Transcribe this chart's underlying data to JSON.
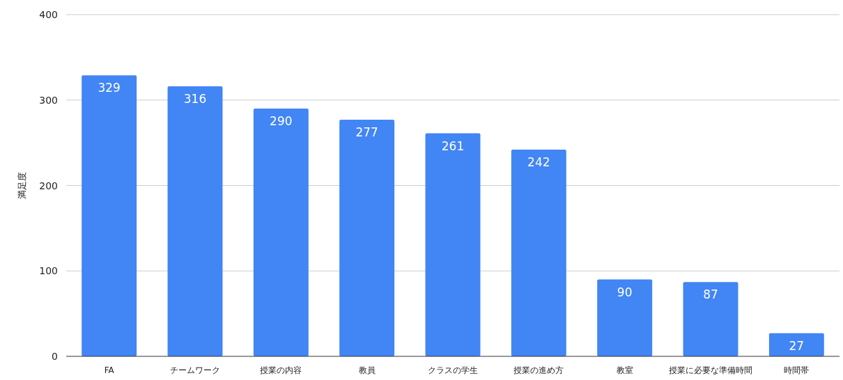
{
  "chart_data": {
    "type": "bar",
    "ylabel": "満足度",
    "categories": [
      "FA",
      "チームワーク",
      "授業の内容",
      "教員",
      "クラスの学生",
      "授業の進め方",
      "教室",
      "授業に必要な準備時間",
      "時間帯"
    ],
    "values": [
      329,
      316,
      290,
      277,
      261,
      242,
      90,
      87,
      27
    ],
    "color": "#4285f4",
    "ylim": [
      0,
      400
    ],
    "yticks": [
      0,
      100,
      200,
      300,
      400
    ],
    "grid": "y",
    "data_labels": true
  }
}
